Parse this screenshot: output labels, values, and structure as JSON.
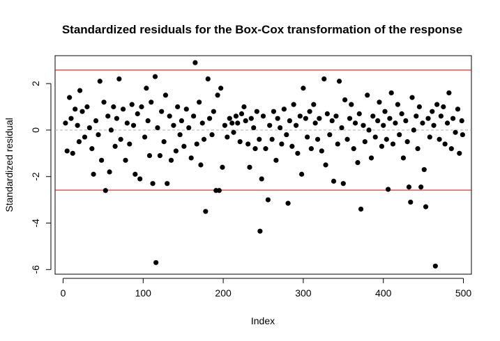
{
  "chart_data": {
    "type": "scatter",
    "title": "Standardized residuals for the Box-Cox transformation of the response",
    "xlabel": "Index",
    "ylabel": "Standardized residual",
    "xlim": [
      -10,
      510
    ],
    "ylim": [
      -6.2,
      3.2
    ],
    "x_ticks": [
      0,
      100,
      200,
      300,
      400,
      500
    ],
    "y_ticks": [
      -6,
      -4,
      -2,
      0,
      2
    ],
    "x_tick_labels": [
      "0",
      "100",
      "200",
      "300",
      "400",
      "500"
    ],
    "y_tick_labels": [
      "-6",
      "-4",
      "-2",
      "0",
      "2"
    ],
    "reference_lines": [
      {
        "orientation": "horizontal",
        "value": 2.58,
        "color": "#dd0000",
        "style": "solid"
      },
      {
        "orientation": "horizontal",
        "value": -2.58,
        "color": "#dd0000",
        "style": "solid"
      },
      {
        "orientation": "horizontal",
        "value": 0,
        "color": "#b0b0b0",
        "style": "dashed"
      }
    ],
    "point_color": "#000000",
    "grid": false,
    "legend": "none",
    "points": [
      [
        3,
        0.3
      ],
      [
        5,
        -0.9
      ],
      [
        8,
        1.4
      ],
      [
        10,
        0.5
      ],
      [
        12,
        -1.0
      ],
      [
        15,
        0.9
      ],
      [
        18,
        0.2
      ],
      [
        20,
        -0.5
      ],
      [
        21,
        1.7
      ],
      [
        24,
        0.8
      ],
      [
        27,
        -0.3
      ],
      [
        30,
        1.0
      ],
      [
        33,
        0.1
      ],
      [
        36,
        -0.8
      ],
      [
        38,
        -1.9
      ],
      [
        41,
        0.4
      ],
      [
        44,
        -0.2
      ],
      [
        46,
        2.1
      ],
      [
        48,
        -1.3
      ],
      [
        51,
        1.2
      ],
      [
        53,
        -2.6
      ],
      [
        56,
        0.6
      ],
      [
        58,
        -1.8
      ],
      [
        60,
        0.0
      ],
      [
        63,
        1.0
      ],
      [
        65,
        -0.7
      ],
      [
        67,
        0.5
      ],
      [
        70,
        2.2
      ],
      [
        72,
        -0.4
      ],
      [
        75,
        0.9
      ],
      [
        78,
        -1.3
      ],
      [
        80,
        0.3
      ],
      [
        83,
        -0.6
      ],
      [
        86,
        1.1
      ],
      [
        88,
        0.2
      ],
      [
        90,
        -1.9
      ],
      [
        93,
        0.7
      ],
      [
        96,
        -2.1
      ],
      [
        98,
        1.0
      ],
      [
        102,
        -0.3
      ],
      [
        104,
        1.8
      ],
      [
        106,
        0.4
      ],
      [
        108,
        -1.1
      ],
      [
        110,
        1.2
      ],
      [
        112,
        -2.3
      ],
      [
        115,
        2.3
      ],
      [
        116,
        -5.7
      ],
      [
        118,
        0.1
      ],
      [
        121,
        -1.1
      ],
      [
        123,
        0.8
      ],
      [
        126,
        -0.5
      ],
      [
        128,
        1.5
      ],
      [
        130,
        -2.3
      ],
      [
        133,
        0.6
      ],
      [
        135,
        -1.3
      ],
      [
        138,
        0.2
      ],
      [
        141,
        -0.9
      ],
      [
        143,
        1.0
      ],
      [
        146,
        -0.2
      ],
      [
        148,
        0.4
      ],
      [
        151,
        -0.7
      ],
      [
        154,
        0.9
      ],
      [
        157,
        0.1
      ],
      [
        160,
        -1.2
      ],
      [
        163,
        0.6
      ],
      [
        165,
        2.9
      ],
      [
        167,
        -0.6
      ],
      [
        170,
        1.2
      ],
      [
        172,
        -1.5
      ],
      [
        174,
        0.3
      ],
      [
        176,
        -0.4
      ],
      [
        178,
        -3.5
      ],
      [
        181,
        2.2
      ],
      [
        183,
        0.5
      ],
      [
        186,
        -0.2
      ],
      [
        188,
        0.8
      ],
      [
        191,
        -2.6
      ],
      [
        193,
        1.5
      ],
      [
        195,
        -2.6
      ],
      [
        197,
        1.8
      ],
      [
        199,
        -1.6
      ],
      [
        202,
        0.2
      ],
      [
        205,
        -0.3
      ],
      [
        208,
        0.5
      ],
      [
        211,
        0.3
      ],
      [
        213,
        -0.1
      ],
      [
        216,
        0.6
      ],
      [
        218,
        0.3
      ],
      [
        221,
        -0.5
      ],
      [
        223,
        0.7
      ],
      [
        226,
        1.0
      ],
      [
        228,
        0.4
      ],
      [
        231,
        -0.6
      ],
      [
        233,
        -1.6
      ],
      [
        235,
        0.5
      ],
      [
        238,
        0.1
      ],
      [
        240,
        -0.8
      ],
      [
        242,
        0.8
      ],
      [
        245,
        -0.4
      ],
      [
        246,
        -4.35
      ],
      [
        248,
        -2.1
      ],
      [
        250,
        0.6
      ],
      [
        253,
        -0.8
      ],
      [
        256,
        -3.0
      ],
      [
        258,
        0.2
      ],
      [
        261,
        -0.4
      ],
      [
        263,
        0.8
      ],
      [
        266,
        -1.3
      ],
      [
        268,
        0.5
      ],
      [
        271,
        0.1
      ],
      [
        273,
        -0.6
      ],
      [
        276,
        0.9
      ],
      [
        279,
        -0.2
      ],
      [
        281,
        -3.15
      ],
      [
        283,
        0.4
      ],
      [
        286,
        -0.7
      ],
      [
        288,
        1.1
      ],
      [
        291,
        0.2
      ],
      [
        293,
        -1.0
      ],
      [
        296,
        0.6
      ],
      [
        298,
        -1.9
      ],
      [
        300,
        1.8
      ],
      [
        303,
        0.5
      ],
      [
        305,
        -0.3
      ],
      [
        308,
        0.8
      ],
      [
        310,
        -0.8
      ],
      [
        313,
        1.1
      ],
      [
        315,
        0.3
      ],
      [
        318,
        -0.4
      ],
      [
        320,
        0.5
      ],
      [
        323,
        -0.9
      ],
      [
        326,
        2.2
      ],
      [
        328,
        -1.5
      ],
      [
        330,
        0.7
      ],
      [
        333,
        -0.2
      ],
      [
        336,
        0.4
      ],
      [
        338,
        -2.2
      ],
      [
        341,
        0.6
      ],
      [
        343,
        -0.6
      ],
      [
        345,
        2.1
      ],
      [
        348,
        0.1
      ],
      [
        350,
        -2.3
      ],
      [
        352,
        1.3
      ],
      [
        355,
        -0.4
      ],
      [
        358,
        0.5
      ],
      [
        360,
        1.1
      ],
      [
        363,
        -0.8
      ],
      [
        365,
        0.3
      ],
      [
        368,
        -1.4
      ],
      [
        370,
        0.7
      ],
      [
        372,
        -3.4
      ],
      [
        375,
        0.2
      ],
      [
        377,
        -0.5
      ],
      [
        380,
        1.5
      ],
      [
        382,
        0.0
      ],
      [
        385,
        -1.2
      ],
      [
        387,
        0.6
      ],
      [
        390,
        -0.3
      ],
      [
        393,
        0.4
      ],
      [
        395,
        1.2
      ],
      [
        398,
        -0.7
      ],
      [
        400,
        0.2
      ],
      [
        402,
        0.8
      ],
      [
        404,
        -0.4
      ],
      [
        406,
        -2.55
      ],
      [
        408,
        0.5
      ],
      [
        410,
        1.6
      ],
      [
        412,
        -0.6
      ],
      [
        415,
        0.3
      ],
      [
        418,
        1.1
      ],
      [
        420,
        -0.2
      ],
      [
        423,
        0.7
      ],
      [
        425,
        -1.2
      ],
      [
        428,
        0.4
      ],
      [
        430,
        -0.5
      ],
      [
        432,
        -2.45
      ],
      [
        434,
        -3.1
      ],
      [
        436,
        1.4
      ],
      [
        438,
        0.0
      ],
      [
        441,
        0.6
      ],
      [
        443,
        -0.8
      ],
      [
        445,
        1.0
      ],
      [
        447,
        -2.45
      ],
      [
        449,
        0.3
      ],
      [
        451,
        -1.7
      ],
      [
        453,
        -3.3
      ],
      [
        456,
        0.5
      ],
      [
        458,
        -0.3
      ],
      [
        461,
        0.8
      ],
      [
        463,
        0.2
      ],
      [
        465,
        -5.85
      ],
      [
        467,
        1.1
      ],
      [
        470,
        -0.4
      ],
      [
        472,
        0.6
      ],
      [
        475,
        1.0
      ],
      [
        477,
        -0.6
      ],
      [
        480,
        0.3
      ],
      [
        482,
        1.6
      ],
      [
        485,
        -0.8
      ],
      [
        487,
        0.5
      ],
      [
        490,
        -0.1
      ],
      [
        493,
        0.9
      ],
      [
        495,
        -1.0
      ],
      [
        498,
        0.4
      ],
      [
        499,
        -0.2
      ]
    ]
  }
}
